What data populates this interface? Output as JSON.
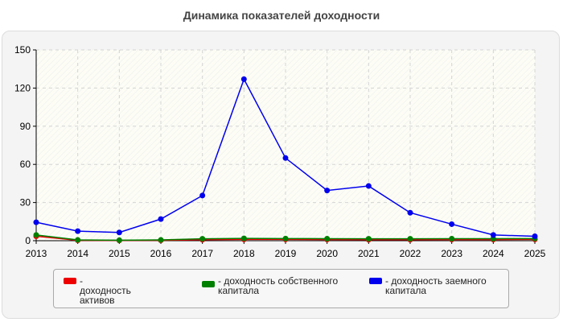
{
  "title": "Динамика показателей доходности",
  "chart_data": {
    "type": "line",
    "x": [
      "2013",
      "2014",
      "2015",
      "2016",
      "2017",
      "2018",
      "2019",
      "2020",
      "2021",
      "2022",
      "2023",
      "2024",
      "2025"
    ],
    "ylim": [
      0,
      150
    ],
    "yticks": [
      0,
      30,
      60,
      90,
      120,
      150
    ],
    "grid": true,
    "legend_position": "bottom",
    "series": [
      {
        "name": "- доходность активов",
        "color": "#ee0000",
        "values": [
          3.5,
          0.3,
          0.2,
          0.3,
          0.8,
          1.0,
          1.0,
          0.9,
          0.8,
          0.8,
          0.9,
          0.9,
          1.0
        ]
      },
      {
        "name": "- доходность собственного капитала",
        "color": "#008000",
        "values": [
          4.5,
          0.6,
          0.4,
          0.6,
          1.5,
          1.8,
          1.7,
          1.6,
          1.5,
          1.5,
          1.6,
          1.6,
          1.7
        ]
      },
      {
        "name": "- доходность заемного капитала",
        "color": "#0000ee",
        "values": [
          14.5,
          7.5,
          6.5,
          17,
          35.5,
          127,
          65,
          39.5,
          43,
          22,
          13,
          4.5,
          3.5
        ]
      }
    ]
  }
}
